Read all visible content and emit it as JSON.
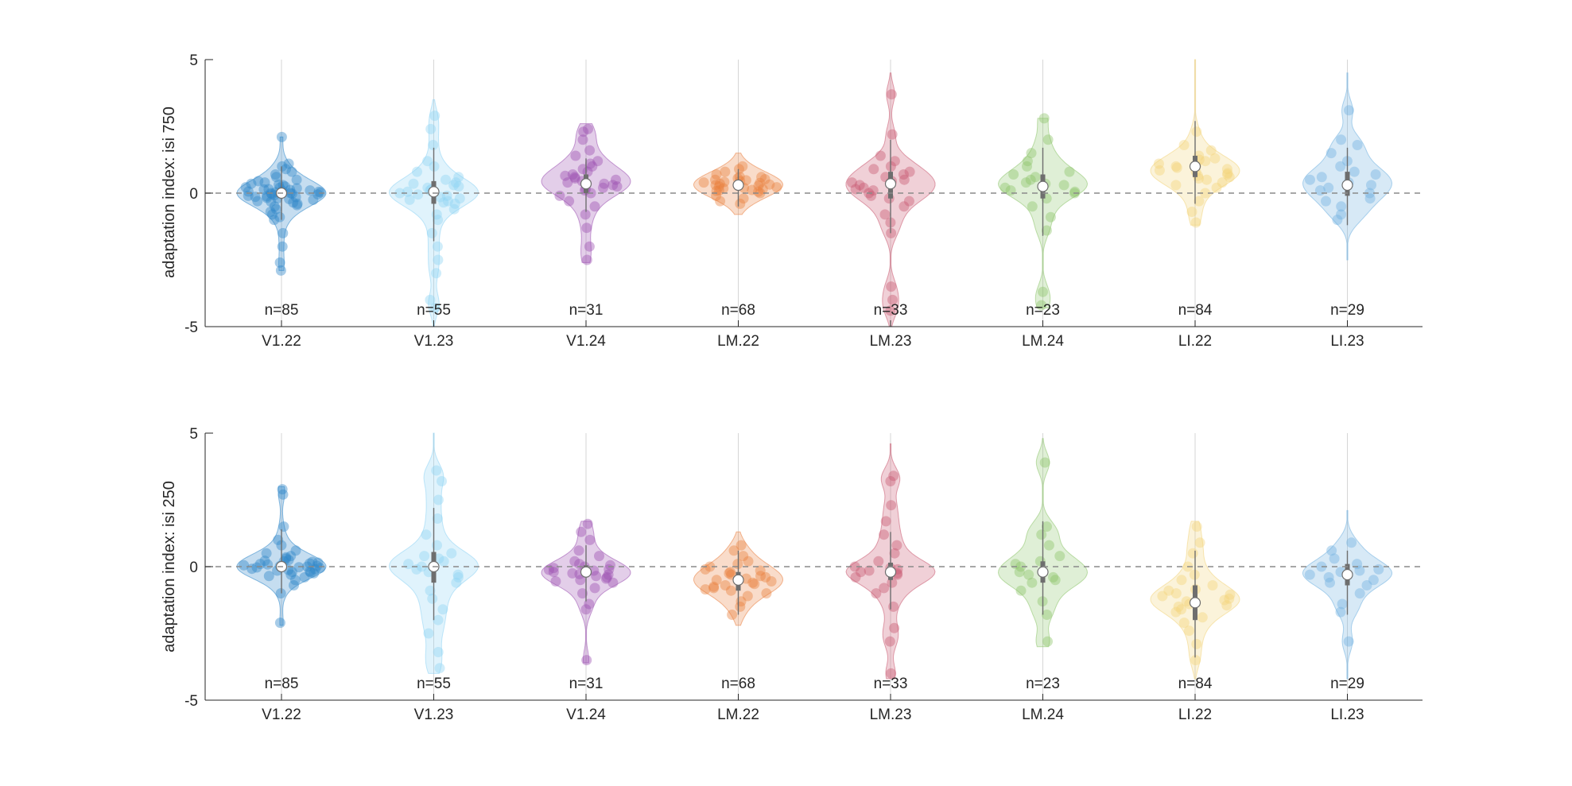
{
  "colors": {
    "axis": "#262626",
    "zero_line": "#8a8a8a",
    "box": "#6e6e6e",
    "median_fill": "#ffffff",
    "groups": [
      "#2e86c8",
      "#8fd3f4",
      "#9b4fb0",
      "#e9803f",
      "#c9576f",
      "#8cc46a",
      "#f2d37a",
      "#6fb0e0"
    ]
  },
  "chart_data": [
    {
      "type": "violin",
      "ylabel": "adaptation index: isi 750",
      "ylim": [
        -5,
        5
      ],
      "yticks": [
        -5,
        0,
        5
      ],
      "ytick_labels": [
        "-5",
        "0",
        "5"
      ],
      "categories": [
        "V1.22",
        "V1.23",
        "V1.24",
        "LM.22",
        "LM.23",
        "LM.24",
        "LI.22",
        "LI.23"
      ],
      "n_labels": [
        "n=85",
        "n=55",
        "n=31",
        "n=68",
        "n=33",
        "n=23",
        "n=84",
        "n=29"
      ],
      "zero_line": true,
      "grid": false,
      "medians": [
        0.0,
        0.05,
        0.35,
        0.3,
        0.35,
        0.25,
        1.0,
        0.3
      ],
      "violin_range": [
        [
          -2.9,
          2.1
        ],
        [
          -5,
          3.5
        ],
        [
          -2.6,
          2.6
        ],
        [
          -0.8,
          1.5
        ],
        [
          -5,
          4.5
        ],
        [
          -4.3,
          2.8
        ],
        [
          -1.2,
          5
        ],
        [
          -2.5,
          4.5
        ]
      ],
      "whisker_range": [
        [
          -1.0,
          1.0
        ],
        [
          -1.8,
          1.7
        ],
        [
          -0.7,
          1.3
        ],
        [
          -0.5,
          0.9
        ],
        [
          -1.5,
          2.0
        ],
        [
          -1.6,
          1.7
        ],
        [
          -0.4,
          2.7
        ],
        [
          -1.2,
          1.7
        ]
      ],
      "box_iqr": [
        [
          -0.15,
          0.15
        ],
        [
          -0.4,
          0.45
        ],
        [
          0.0,
          0.7
        ],
        [
          0.1,
          0.5
        ],
        [
          -0.2,
          0.8
        ],
        [
          -0.2,
          0.7
        ],
        [
          0.6,
          1.4
        ],
        [
          -0.1,
          0.8
        ]
      ],
      "points": [
        [
          2.1,
          1.1,
          1.0,
          0.9,
          0.8,
          0.7,
          0.6,
          0.5,
          0.4,
          0.35,
          0.3,
          0.25,
          0.2,
          0.18,
          0.15,
          0.12,
          0.1,
          0.08,
          0.05,
          0.03,
          0.0,
          0.0,
          -0.02,
          -0.05,
          -0.08,
          -0.1,
          -0.12,
          -0.15,
          -0.18,
          -0.2,
          -0.25,
          -0.3,
          -0.35,
          -0.4,
          -0.5,
          -0.6,
          -0.7,
          -0.8,
          -0.9,
          -1.0,
          -1.5,
          -2.0,
          -2.6,
          -2.9,
          0.22,
          0.14,
          0.06,
          -0.04,
          -0.14,
          -0.22,
          0.32,
          0.02,
          -0.32,
          0.45,
          -0.45
        ],
        [
          2.9,
          2.4,
          1.8,
          1.2,
          1.0,
          0.8,
          0.6,
          0.5,
          0.4,
          0.3,
          0.2,
          0.1,
          0.05,
          0.0,
          -0.05,
          -0.1,
          -0.2,
          -0.3,
          -0.4,
          -0.6,
          -0.8,
          -1.0,
          -1.5,
          -2.0,
          -2.5,
          -3.0,
          -4.0,
          -4.3,
          0.25,
          0.15,
          -0.15,
          -0.25,
          0.35,
          -0.35
        ],
        [
          2.4,
          2.3,
          2.0,
          1.6,
          1.4,
          1.2,
          1.1,
          1.0,
          0.9,
          0.8,
          0.7,
          0.6,
          0.5,
          0.45,
          0.4,
          0.35,
          0.3,
          0.25,
          0.2,
          0.1,
          0.0,
          -0.1,
          -0.3,
          -0.5,
          -0.8,
          -1.3,
          -2.0,
          -2.5,
          0.55,
          0.15,
          0.65
        ],
        [
          1.0,
          0.9,
          0.8,
          0.7,
          0.6,
          0.55,
          0.5,
          0.45,
          0.4,
          0.35,
          0.3,
          0.25,
          0.2,
          0.15,
          0.1,
          0.05,
          0.0,
          -0.1,
          -0.2,
          -0.3,
          -0.4,
          0.42,
          0.38,
          0.28,
          0.22,
          0.18,
          0.12,
          0.48,
          0.32,
          0.62,
          0.52,
          0.08
        ],
        [
          3.7,
          2.2,
          1.4,
          1.2,
          1.0,
          0.9,
          0.8,
          0.6,
          0.5,
          0.4,
          0.3,
          0.2,
          0.1,
          0.0,
          -0.1,
          -0.3,
          -0.5,
          -0.8,
          -1.1,
          -1.5,
          -3.5,
          -4.0,
          -4.4,
          0.7,
          0.45,
          0.15,
          -0.2
        ],
        [
          2.8,
          2.0,
          1.5,
          1.2,
          1.0,
          0.8,
          0.6,
          0.5,
          0.4,
          0.3,
          0.2,
          0.1,
          0.0,
          -0.2,
          -0.5,
          -0.9,
          -1.4,
          -3.7,
          -4.2,
          0.7,
          0.35,
          0.05
        ],
        [
          2.3,
          1.8,
          1.6,
          1.4,
          1.3,
          1.2,
          1.1,
          1.0,
          0.9,
          0.8,
          0.7,
          0.6,
          0.5,
          0.4,
          0.3,
          0.2,
          0.0,
          -0.3,
          -0.7,
          -1.1,
          1.05,
          0.95,
          0.75,
          0.55,
          1.25,
          0.65,
          0.85
        ],
        [
          3.1,
          2.0,
          1.8,
          1.5,
          1.2,
          1.0,
          0.8,
          0.6,
          0.4,
          0.2,
          0.0,
          -0.2,
          -0.5,
          -0.8,
          -1.0,
          0.5,
          0.3,
          0.7,
          0.1,
          -0.3
        ]
      ]
    },
    {
      "type": "violin",
      "ylabel": "adaptation index: isi 250",
      "ylim": [
        -5,
        5
      ],
      "yticks": [
        -5,
        0,
        5
      ],
      "ytick_labels": [
        "-5",
        "0",
        "5"
      ],
      "categories": [
        "V1.22",
        "V1.23",
        "V1.24",
        "LM.22",
        "LM.23",
        "LM.24",
        "LI.22",
        "LI.23"
      ],
      "n_labels": [
        "n=85",
        "n=55",
        "n=31",
        "n=68",
        "n=33",
        "n=23",
        "n=84",
        "n=29"
      ],
      "zero_line": true,
      "grid": false,
      "medians": [
        0.0,
        0.0,
        -0.2,
        -0.5,
        -0.2,
        -0.2,
        -1.35,
        -0.3
      ],
      "violin_range": [
        [
          -2.2,
          3.0
        ],
        [
          -4.0,
          5.0
        ],
        [
          -3.6,
          1.7
        ],
        [
          -2.2,
          1.3
        ],
        [
          -4.2,
          4.6
        ],
        [
          -3.0,
          4.8
        ],
        [
          -4.2,
          1.7
        ],
        [
          -4.2,
          2.1
        ]
      ],
      "whisker_range": [
        [
          -1.0,
          1.4
        ],
        [
          -2.0,
          2.2
        ],
        [
          -1.3,
          0.8
        ],
        [
          -1.8,
          0.6
        ],
        [
          -1.6,
          1.3
        ],
        [
          -1.8,
          1.7
        ],
        [
          -3.4,
          0.6
        ],
        [
          -1.8,
          0.6
        ]
      ],
      "box_iqr": [
        [
          -0.15,
          0.15
        ],
        [
          -0.6,
          0.55
        ],
        [
          -0.4,
          0.05
        ],
        [
          -0.9,
          -0.2
        ],
        [
          -0.5,
          0.15
        ],
        [
          -0.6,
          0.2
        ],
        [
          -2.0,
          -0.7
        ],
        [
          -0.7,
          0.1
        ]
      ],
      "points": [
        [
          2.9,
          2.7,
          1.5,
          1.0,
          0.8,
          0.6,
          0.5,
          0.4,
          0.3,
          0.25,
          0.2,
          0.15,
          0.1,
          0.05,
          0.02,
          0.0,
          -0.02,
          -0.05,
          -0.1,
          -0.15,
          -0.2,
          -0.25,
          -0.3,
          -0.4,
          -0.5,
          -0.7,
          -1.0,
          -2.1,
          0.12,
          0.08,
          0.03,
          -0.03,
          -0.08,
          -0.12,
          0.18,
          -0.18,
          0.22,
          -0.22,
          0.35,
          -0.35
        ],
        [
          3.6,
          3.2,
          2.5,
          1.8,
          1.2,
          0.8,
          0.5,
          0.3,
          0.1,
          0.0,
          -0.2,
          -0.4,
          -0.6,
          -0.9,
          -1.2,
          -1.6,
          -2.0,
          -2.5,
          -3.2,
          -3.8,
          0.2,
          -0.1,
          0.4,
          -0.3
        ],
        [
          1.6,
          1.3,
          1.0,
          0.6,
          0.4,
          0.2,
          0.1,
          0.0,
          -0.1,
          -0.2,
          -0.25,
          -0.3,
          -0.35,
          -0.4,
          -0.5,
          -0.6,
          -0.8,
          -1.0,
          -1.4,
          -1.6,
          -3.5,
          -0.15,
          -0.05,
          -0.45,
          0.05,
          -0.28,
          -0.12,
          -0.55
        ],
        [
          0.8,
          0.6,
          0.4,
          0.2,
          0.1,
          0.0,
          -0.1,
          -0.2,
          -0.3,
          -0.4,
          -0.5,
          -0.6,
          -0.7,
          -0.8,
          -0.9,
          -1.0,
          -1.1,
          -1.3,
          -1.5,
          -1.8,
          -0.45,
          -0.55,
          -0.35,
          -0.65,
          -0.25,
          -0.75,
          -0.15,
          -0.85
        ],
        [
          3.4,
          3.2,
          2.3,
          1.7,
          1.2,
          0.8,
          0.5,
          0.2,
          0.0,
          -0.1,
          -0.2,
          -0.3,
          -0.4,
          -0.6,
          -0.8,
          -1.0,
          -1.5,
          -2.3,
          -2.8,
          -4.0,
          -0.25,
          -0.15,
          -0.05
        ],
        [
          3.9,
          1.5,
          1.2,
          0.8,
          0.4,
          0.2,
          0.0,
          -0.2,
          -0.4,
          -0.6,
          -0.9,
          -1.3,
          -1.8,
          -2.8,
          -0.3,
          0.1,
          -0.5
        ],
        [
          1.5,
          0.9,
          0.5,
          0.0,
          -0.3,
          -0.5,
          -0.7,
          -0.9,
          -1.0,
          -1.1,
          -1.2,
          -1.3,
          -1.4,
          -1.5,
          -1.6,
          -1.7,
          -1.9,
          -2.1,
          -2.4,
          -2.9,
          -3.5,
          -1.25,
          -1.45,
          -0.85,
          -1.05
        ],
        [
          0.9,
          0.6,
          0.3,
          0.1,
          0.0,
          -0.1,
          -0.2,
          -0.3,
          -0.5,
          -0.7,
          -1.0,
          -1.4,
          -1.7,
          -2.8,
          -0.4,
          -0.6,
          -0.15
        ]
      ]
    }
  ]
}
